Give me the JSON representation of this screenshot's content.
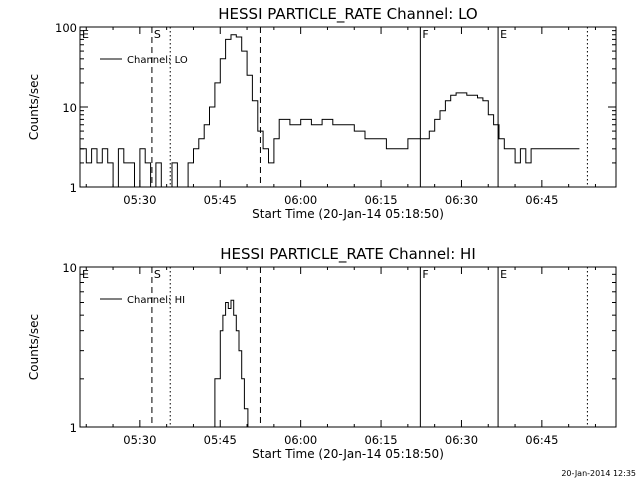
{
  "footer_timestamp": "20-Jan-2014 12:35",
  "chart_data": [
    {
      "type": "line",
      "title": "HESSI PARTICLE_RATE Channel: LO",
      "xlabel": "Start Time (20-Jan-14 05:18:50)",
      "ylabel": "Counts/sec",
      "yscale": "log",
      "ylim": [
        1,
        100
      ],
      "xlim": [
        "05:18:50",
        "06:58:50"
      ],
      "xticks": [
        "05:30",
        "05:45",
        "06:00",
        "06:15",
        "06:30",
        "06:45"
      ],
      "yticks": [
        "1",
        "10",
        "100"
      ],
      "legend": {
        "label": "Channel: LO",
        "position": "top-left"
      },
      "markers": [
        {
          "label": "E",
          "time": "05:18:50",
          "style": "none"
        },
        {
          "label": "S",
          "time": "05:32:15",
          "style": "dashed"
        },
        {
          "label": "",
          "time": "05:35:40",
          "style": "dotted"
        },
        {
          "label": "",
          "time": "05:52:30",
          "style": "dashed"
        },
        {
          "label": "F",
          "time": "06:22:20",
          "style": "solid"
        },
        {
          "label": "E",
          "time": "06:36:50",
          "style": "solid"
        },
        {
          "label": "",
          "time": "06:53:30",
          "style": "dotted"
        }
      ],
      "series": [
        {
          "x": [
            "05:18:50",
            "05:20:00",
            "05:21:00",
            "05:22:00",
            "05:23:00",
            "05:24:00",
            "05:25:00",
            "05:26:00",
            "05:27:00",
            "05:28:00",
            "05:29:00",
            "05:30:00",
            "05:31:00",
            "05:32:00",
            "05:33:00",
            "05:34:00",
            "05:35:00",
            "05:36:00",
            "05:37:00",
            "05:38:00",
            "05:39:00",
            "05:40:00",
            "05:41:00",
            "05:42:00",
            "05:43:00",
            "05:44:00",
            "05:45:00",
            "05:46:00",
            "05:47:00",
            "05:48:00",
            "05:49:00",
            "05:50:00",
            "05:51:00",
            "05:52:00",
            "05:53:00",
            "05:54:00",
            "05:55:00",
            "05:56:00",
            "05:58:00",
            "06:00:00",
            "06:02:00",
            "06:04:00",
            "06:06:00",
            "06:08:00",
            "06:10:00",
            "06:12:00",
            "06:14:00",
            "06:16:00",
            "06:18:00",
            "06:20:00",
            "06:22:00",
            "06:23:00",
            "06:24:00",
            "06:25:00",
            "06:26:00",
            "06:27:00",
            "06:28:00",
            "06:29:00",
            "06:30:00",
            "06:31:00",
            "06:32:00",
            "06:33:00",
            "06:34:00",
            "06:35:00",
            "06:36:00",
            "06:37:00",
            "06:38:00",
            "06:39:00",
            "06:40:00",
            "06:41:00",
            "06:42:00",
            "06:43:00",
            "06:44:00",
            "06:46:00",
            "06:48:00",
            "06:50:00",
            "06:52:00"
          ],
          "values": [
            3,
            2,
            3,
            2,
            3,
            2,
            1,
            3,
            2,
            2,
            1,
            3,
            2,
            1,
            2,
            1,
            1,
            2,
            1,
            1,
            2,
            3,
            4,
            6,
            10,
            20,
            40,
            70,
            80,
            75,
            50,
            25,
            12,
            5,
            3,
            2,
            4,
            7,
            6,
            7,
            6,
            7,
            6,
            6,
            5,
            4,
            4,
            3,
            3,
            4,
            4,
            4,
            5,
            7,
            9,
            12,
            14,
            15,
            15,
            14,
            14,
            13,
            12,
            8,
            6,
            4,
            3,
            3,
            2,
            3,
            2,
            3,
            3,
            3,
            3,
            3,
            3
          ]
        }
      ]
    },
    {
      "type": "line",
      "title": "HESSI PARTICLE_RATE Channel: HI",
      "xlabel": "Start Time (20-Jan-14 05:18:50)",
      "ylabel": "Counts/sec",
      "yscale": "log",
      "ylim": [
        1,
        10
      ],
      "xlim": [
        "05:18:50",
        "06:58:50"
      ],
      "xticks": [
        "05:30",
        "05:45",
        "06:00",
        "06:15",
        "06:30",
        "06:45"
      ],
      "yticks": [
        "1",
        "10"
      ],
      "legend": {
        "label": "Channel: HI",
        "position": "top-left"
      },
      "markers": [
        {
          "label": "E",
          "time": "05:18:50",
          "style": "none"
        },
        {
          "label": "S",
          "time": "05:32:15",
          "style": "dashed"
        },
        {
          "label": "",
          "time": "05:35:40",
          "style": "dotted"
        },
        {
          "label": "",
          "time": "05:52:30",
          "style": "dashed"
        },
        {
          "label": "F",
          "time": "06:22:20",
          "style": "solid"
        },
        {
          "label": "E",
          "time": "06:36:50",
          "style": "solid"
        },
        {
          "label": "",
          "time": "06:53:30",
          "style": "dotted"
        }
      ],
      "series": [
        {
          "x": [
            "05:42:50",
            "05:44:00",
            "05:45:00",
            "05:45:30",
            "05:46:00",
            "05:46:30",
            "05:47:00",
            "05:47:30",
            "05:48:00",
            "05:48:30",
            "05:49:00",
            "05:49:30",
            "05:50:10"
          ],
          "values": [
            1,
            2,
            4,
            5,
            6,
            5.5,
            6.2,
            5,
            4,
            3,
            2,
            1.3,
            1
          ]
        }
      ]
    }
  ]
}
